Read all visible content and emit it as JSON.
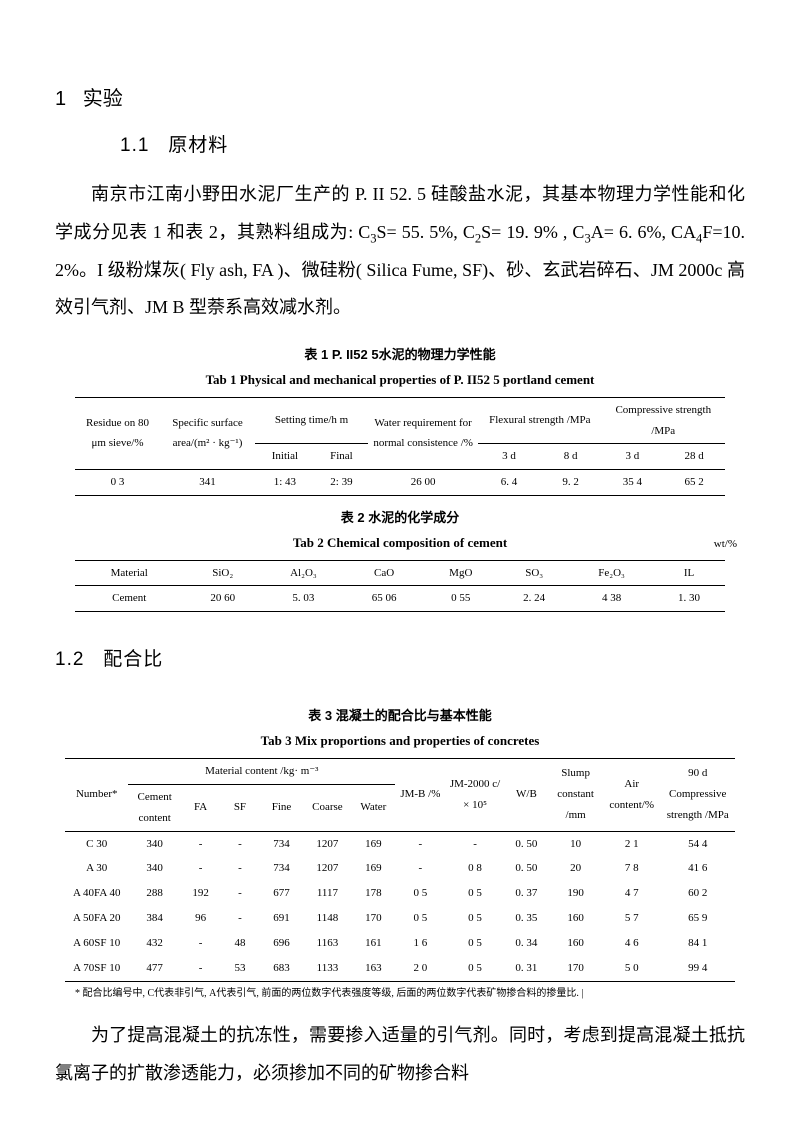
{
  "section1": {
    "num": "1",
    "title": "实验"
  },
  "section11": {
    "num": "1.1",
    "title": "原材料"
  },
  "para1_html": "南京市江南小野田水泥厂生产的 P. II 52. 5 硅酸盐水泥，其基本物理力学性能和化学成分见表 1 和表 2，其熟料组成为: C<sub>3</sub>S= 55. 5%, C<sub>2</sub>S= 19. 9% , C<sub>3</sub>A= 6. 6%, CA<sub>4</sub>F=10. 2%。I 级粉煤灰( Fly ash, FA )、微硅粉( Silica Fume, SF)、砂、玄武岩碎石、JM 2000c 高效引气剂、JM  B 型萘系高效减水剂。",
  "table1": {
    "title_cn": "表 1  P. II52 5水泥的物理力学性能",
    "title_en": "Tab 1  Physical and mechanical properties of P. II52 5 portland cement",
    "headers": {
      "residue": "Residue on 80 μm sieve/%",
      "surface": "Specific surface area/(m² · kg⁻¹)",
      "setting": "Setting time/h m",
      "initial": "Initial",
      "final": "Final",
      "water": "Water requirement for normal consistence /%",
      "flex": "Flexural strength /MPa",
      "d3": "3 d",
      "d8": "8 d",
      "comp": "Compressive strength /MPa",
      "d28": "28 d"
    },
    "row": [
      "0 3",
      "341",
      "1: 43",
      "2: 39",
      "26 00",
      "6. 4",
      "9. 2",
      "35 4",
      "65 2"
    ]
  },
  "table2": {
    "title_cn": "表 2  水泥的化学成分",
    "title_en": "Tab 2  Chemical composition of cement",
    "unit": "wt/%",
    "headers": [
      "Material",
      "SiO₂",
      "Al₂O₃",
      "CaO",
      "MgO",
      "SO₃",
      "Fe₂O₃",
      "IL"
    ],
    "row": [
      "Cement",
      "20 60",
      "5. 03",
      "65 06",
      "0 55",
      "2. 24",
      "4 38",
      "1. 30"
    ]
  },
  "section12": {
    "num": "1.2",
    "title": "配合比"
  },
  "table3": {
    "title_cn": "表 3  混凝土的配合比与基本性能",
    "title_en": "Tab 3  Mix proportions and properties of concretes",
    "headers": {
      "number": "Number*",
      "material": "Material content /kg· m⁻³",
      "cement": "Cement content",
      "fa": "FA",
      "sf": "SF",
      "fine": "Fine",
      "coarse": "Coarse",
      "water": "Water",
      "jmb": "JM-B /%",
      "jm2000": "JM-2000 c/ × 10⁵",
      "wb": "W/B",
      "slump": "Slump constant /mm",
      "air": "Air content/%",
      "comp90": "90 d Compressive strength /MPa"
    },
    "rows": [
      [
        "C 30",
        "340",
        "-",
        "-",
        "734",
        "1207",
        "169",
        "-",
        "-",
        "0. 50",
        "10",
        "2 1",
        "54 4"
      ],
      [
        "A 30",
        "340",
        "-",
        "-",
        "734",
        "1207",
        "169",
        "-",
        "0 8",
        "0. 50",
        "20",
        "7 8",
        "41 6"
      ],
      [
        "A 40FA 40",
        "288",
        "192",
        "-",
        "677",
        "1117",
        "178",
        "0 5",
        "0 5",
        "0. 37",
        "190",
        "4 7",
        "60 2"
      ],
      [
        "A 50FA 20",
        "384",
        "96",
        "-",
        "691",
        "1148",
        "170",
        "0 5",
        "0 5",
        "0. 35",
        "160",
        "5 7",
        "65 9"
      ],
      [
        "A 60SF 10",
        "432",
        "-",
        "48",
        "696",
        "1163",
        "161",
        "1 6",
        "0 5",
        "0. 34",
        "160",
        "4 6",
        "84 1"
      ],
      [
        "A 70SF 10",
        "477",
        "-",
        "53",
        "683",
        "1133",
        "163",
        "2 0",
        "0 5",
        "0. 31",
        "170",
        "5 0",
        "99 4"
      ]
    ],
    "footnote": "* 配合比编号中, C代表非引气, A代表引气, 前面的两位数字代表强度等级, 后面的两位数字代表矿物掺合料的掺量比. |"
  },
  "para2": "为了提高混凝土的抗冻性，需要掺入适量的引气剂。同时，考虑到提高混凝土抵抗氯离子的扩散渗透能力，必须掺加不同的矿物掺合料"
}
